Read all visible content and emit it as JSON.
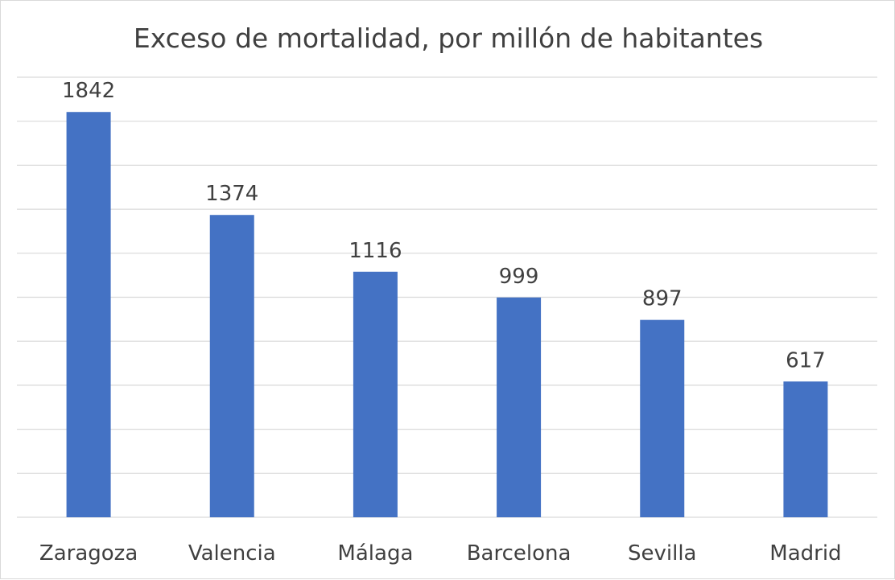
{
  "chart_data": {
    "type": "bar",
    "title": "Exceso de mortalidad, por millón de habitantes",
    "categories": [
      "Zaragoza",
      "Valencia",
      "Málaga",
      "Barcelona",
      "Sevilla",
      "Madrid"
    ],
    "values": [
      1842,
      1374,
      1116,
      999,
      897,
      617
    ],
    "xlabel": "",
    "ylabel": "",
    "ylim": [
      0,
      2000
    ],
    "grid": true,
    "y_axis_labels_visible": false,
    "data_labels": true,
    "legend": "none",
    "colors": {
      "bar": "#4472C4",
      "grid": "#d9d9d9",
      "text": "#404040"
    }
  }
}
